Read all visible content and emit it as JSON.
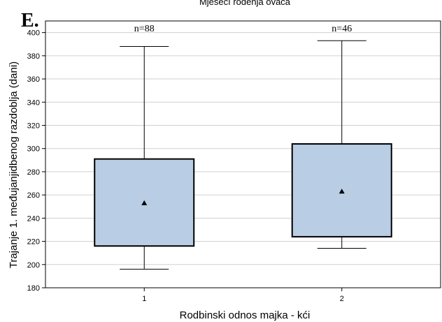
{
  "panel_label": "E.",
  "chart_data": {
    "type": "box",
    "title": "Mjesečí rođenja ovaca",
    "xlabel": "Rodbinski odnos majka - kći",
    "ylabel": "Trajanje 1. međujanjidbenog razdoblja (dani)",
    "categories": [
      "1",
      "2"
    ],
    "ylim": [
      180,
      410
    ],
    "yticks": [
      180,
      200,
      220,
      240,
      260,
      280,
      300,
      320,
      340,
      360,
      380,
      400
    ],
    "grid": true,
    "boxes": [
      {
        "category": "1",
        "n_label": "n=88",
        "min": 196,
        "q1": 216,
        "mean": 253,
        "q3": 291,
        "max": 388
      },
      {
        "category": "2",
        "n_label": "n=46",
        "min": 214,
        "q1": 224,
        "mean": 263,
        "q3": 304,
        "max": 393
      }
    ]
  },
  "colors": {
    "box_fill": "#b9cde5",
    "box_stroke": "#000000",
    "grid": "#d0d0d0",
    "axis": "#000000"
  }
}
